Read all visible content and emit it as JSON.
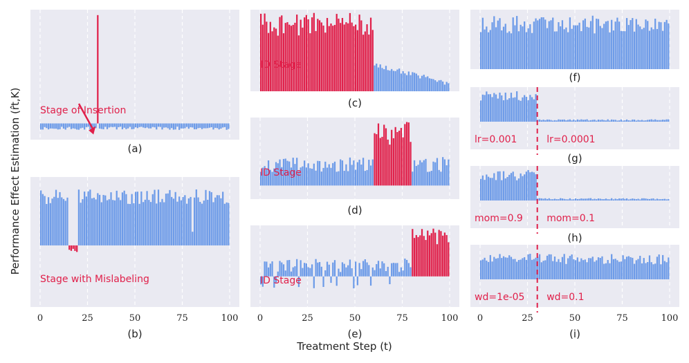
{
  "figure": {
    "ylabel": "Performance Effect Estimation (r̂t,K)",
    "xlabel": "Treatment Step (t)"
  },
  "colors": {
    "panel_bg": "#eaeaf2",
    "blue": "#6d9be8",
    "red": "#e0204a",
    "grid": "#ffffff",
    "text": "#222222"
  },
  "chart_data": [
    {
      "id": "a",
      "type": "bar",
      "caption": "(a)",
      "x": "0..99 (treatment steps)",
      "values_description": "all steps ~ -0.04 (small blue negative bars) except step 30",
      "baseline": -0.04,
      "spike": {
        "step": 30,
        "value": 1.0,
        "color": "red"
      },
      "ylim": [
        -0.15,
        1.05
      ],
      "annotations": [
        {
          "text": "Stage of Insertion",
          "color": "red",
          "arrow_to_step": 30
        }
      ]
    },
    {
      "id": "b",
      "type": "bar",
      "caption": "(b)",
      "x": "0..99",
      "values_description": "blue bars ~0.6-0.85 except steps 15-19 which are small negative red bars (~-0.08)",
      "red_range": [
        15,
        19
      ],
      "ylim": [
        -0.9,
        1.0
      ],
      "xticks": [
        0,
        25,
        50,
        75,
        100
      ],
      "annotations": [
        {
          "text": "Stage with Mislabeling",
          "color": "red"
        }
      ]
    },
    {
      "id": "c",
      "type": "bar",
      "caption": "(c)",
      "x": "0..99",
      "values_description": "red bars ~0.7-0.95 for steps 0-59, then blue bars decreasing 0.35 -> 0.1",
      "red_range": [
        0,
        59
      ],
      "ylim": [
        0,
        1.0
      ],
      "annotations": [
        {
          "text": "ID Stage",
          "color": "red"
        }
      ]
    },
    {
      "id": "d",
      "type": "bar",
      "caption": "(d)",
      "x": "0..99",
      "values_description": "blue bars ~0.2-0.45, red bars ~0.6-0.95 for steps 60-79, then blue ~0.3",
      "red_range": [
        60,
        79
      ],
      "ylim": [
        -0.2,
        1.0
      ],
      "annotations": [
        {
          "text": "ID Stage",
          "color": "red"
        }
      ]
    },
    {
      "id": "e",
      "type": "bar",
      "caption": "(e)",
      "x": "0..99",
      "values_description": "blue bars small ~0.1-0.35 with some negatives, red bars ~0.6-0.95 for steps 80-99",
      "red_range": [
        80,
        99
      ],
      "ylim": [
        -0.6,
        1.0
      ],
      "xticks": [
        0,
        25,
        50,
        75,
        100
      ],
      "annotations": [
        {
          "text": "ID Stage",
          "color": "red"
        }
      ]
    },
    {
      "id": "f",
      "type": "bar",
      "caption": "(f)",
      "x": "0..99",
      "values_description": "blue bars ~0.6-0.9 throughout",
      "ylim": [
        0,
        1.0
      ]
    },
    {
      "id": "g",
      "type": "bar",
      "caption": "(g)",
      "x": "0..99",
      "values_description": "blue bars ~0.6-0.85 for steps 0-29, then ~0.05 afterwards",
      "change_step": 30,
      "ylim": [
        -0.8,
        1.0
      ],
      "annotations": [
        {
          "text": "lr=0.001",
          "color": "red"
        },
        {
          "text": "lr=0.0001",
          "color": "red"
        }
      ]
    },
    {
      "id": "h",
      "type": "bar",
      "caption": "(h)",
      "x": "0..99",
      "values_description": "blue bars ~0.6-0.85 for steps 0-29, then ~0.05 afterwards",
      "change_step": 30,
      "ylim": [
        -0.8,
        1.0
      ],
      "annotations": [
        {
          "text": "mom=0.9",
          "color": "red"
        },
        {
          "text": "mom=0.1",
          "color": "red"
        }
      ]
    },
    {
      "id": "i",
      "type": "bar",
      "caption": "(i)",
      "x": "0..99",
      "values_description": "blue bars ~0.45-0.75 throughout (slight dip after step 30)",
      "change_step": 30,
      "ylim": [
        -0.8,
        1.0
      ],
      "xticks": [
        0,
        25,
        50,
        75,
        100
      ],
      "annotations": [
        {
          "text": "wd=1e-05",
          "color": "red"
        },
        {
          "text": "wd=0.1",
          "color": "red"
        }
      ]
    }
  ]
}
